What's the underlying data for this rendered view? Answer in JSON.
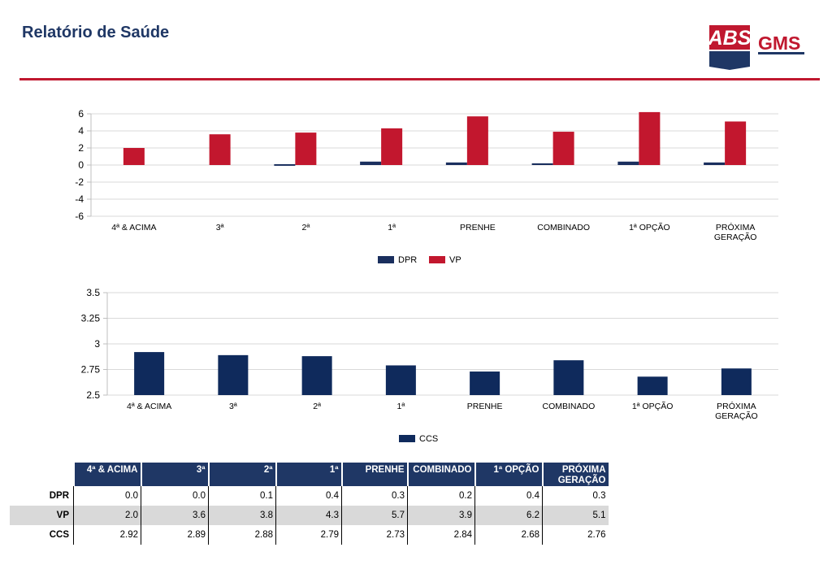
{
  "header": {
    "title": "Relatório de Saúde",
    "logo_text_1": "ABS",
    "logo_text_2": "GMS"
  },
  "colors": {
    "navy": "#1f3765",
    "red": "#c0182f",
    "dpr": "#1a2f5e",
    "vp": "#c2172e",
    "ccs": "#0f2a5c"
  },
  "chart_data": [
    {
      "type": "bar",
      "categories": [
        "4ª & ACIMA",
        "3ª",
        "2ª",
        "1ª",
        "PRENHE",
        "COMBINADO",
        "1ª OPÇÃO",
        "PRÓXIMA GERAÇÃO"
      ],
      "series": [
        {
          "name": "DPR",
          "values": [
            0.0,
            0.0,
            0.1,
            0.4,
            0.3,
            0.2,
            0.4,
            0.3
          ]
        },
        {
          "name": "VP",
          "values": [
            2.0,
            3.6,
            3.8,
            4.3,
            5.7,
            3.9,
            6.2,
            5.1
          ]
        }
      ],
      "ylim": [
        -6,
        6
      ],
      "yticks": [
        "6",
        "4",
        "2",
        "0",
        "-2",
        "-4",
        "-6"
      ],
      "grid": true,
      "legend": "bottom"
    },
    {
      "type": "bar",
      "categories": [
        "4ª & ACIMA",
        "3ª",
        "2ª",
        "1ª",
        "PRENHE",
        "COMBINADO",
        "1ª OPÇÃO",
        "PRÓXIMA GERAÇÃO"
      ],
      "series": [
        {
          "name": "CCS",
          "values": [
            2.92,
            2.89,
            2.88,
            2.79,
            2.73,
            2.84,
            2.68,
            2.76
          ]
        }
      ],
      "ylim": [
        2.5,
        3.5
      ],
      "yticks": [
        "3.5",
        "3.25",
        "3",
        "2.75",
        "2.5"
      ],
      "grid": true,
      "legend": "bottom"
    }
  ],
  "table": {
    "headers": [
      "4ª & ACIMA",
      "3ª",
      "2ª",
      "1ª",
      "PRENHE",
      "COMBINADO",
      "1ª OPÇÃO",
      "PRÓXIMA GERAÇÃO"
    ],
    "rows": [
      {
        "label": "DPR",
        "values": [
          "0.0",
          "0.0",
          "0.1",
          "0.4",
          "0.3",
          "0.2",
          "0.4",
          "0.3"
        ]
      },
      {
        "label": "VP",
        "values": [
          "2.0",
          "3.6",
          "3.8",
          "4.3",
          "5.7",
          "3.9",
          "6.2",
          "5.1"
        ]
      },
      {
        "label": "CCS",
        "values": [
          "2.92",
          "2.89",
          "2.88",
          "2.79",
          "2.73",
          "2.84",
          "2.68",
          "2.76"
        ]
      }
    ]
  }
}
